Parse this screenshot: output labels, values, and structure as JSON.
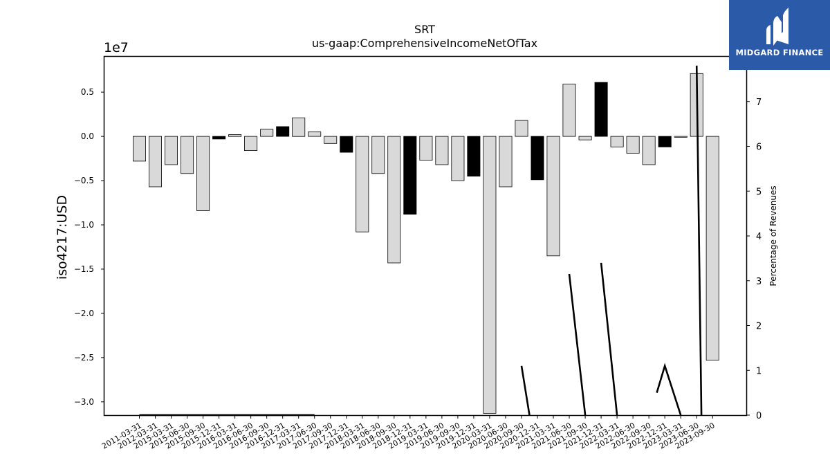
{
  "chart_data": {
    "type": "bar",
    "title": "SRT",
    "subtitle": "us-gaap:ComprehensiveIncomeNetOfTax",
    "ylabel": "iso4217:USD",
    "y_multiplier": "1e7",
    "y2label": "Percentage of Revenues",
    "ylim": [
      -3.15,
      0.9
    ],
    "y2lim": [
      0,
      8
    ],
    "yticks": [
      -3.0,
      -2.5,
      -2.0,
      -1.5,
      -1.0,
      -0.5,
      0.0,
      0.5
    ],
    "y2ticks": [
      0,
      1,
      2,
      3,
      4,
      5,
      6,
      7
    ],
    "categories": [
      "2011-03-31",
      "2012-03-31",
      "2015-03-31",
      "2015-06-30",
      "2015-09-30",
      "2015-12-31",
      "2016-03-31",
      "2016-06-30",
      "2016-09-30",
      "2016-12-31",
      "2017-03-31",
      "2017-06-30",
      "2017-09-30",
      "2017-12-31",
      "2018-03-31",
      "2018-06-30",
      "2018-09-30",
      "2018-12-31",
      "2019-03-31",
      "2019-06-30",
      "2019-09-30",
      "2019-12-31",
      "2020-03-31",
      "2020-06-30",
      "2020-09-30",
      "2020-12-31",
      "2021-03-31",
      "2021-06-30",
      "2021-09-30",
      "2021-12-31",
      "2022-03-31",
      "2022-06-30",
      "2022-09-30",
      "2022-12-31",
      "2023-03-31",
      "2023-06-30",
      "2023-09-30"
    ],
    "values": [
      -0.28,
      -0.57,
      -0.32,
      -0.42,
      -0.84,
      -0.03,
      0.02,
      -0.16,
      0.08,
      0.11,
      0.21,
      0.05,
      -0.08,
      -0.18,
      -1.08,
      -0.42,
      -1.43,
      -0.88,
      -0.27,
      -0.32,
      -0.5,
      -0.45,
      -3.13,
      -0.57,
      0.18,
      -0.49,
      -1.35,
      0.59,
      -0.04,
      0.61,
      -0.12,
      -0.19,
      -0.32,
      -0.12,
      -0.01,
      0.71,
      -2.53
    ],
    "bar_colors": [
      "light",
      "light",
      "light",
      "light",
      "light",
      "dark",
      "light",
      "light",
      "light",
      "dark",
      "light",
      "light",
      "light",
      "dark",
      "light",
      "light",
      "light",
      "dark",
      "light",
      "light",
      "light",
      "dark",
      "light",
      "light",
      "light",
      "dark",
      "light",
      "light",
      "light",
      "dark",
      "light",
      "light",
      "light",
      "dark",
      "light",
      "light",
      "light"
    ],
    "colors": {
      "light": "#d9d9d9",
      "dark": "#000000",
      "edge": "#000000",
      "line": "#000000"
    },
    "line_series": {
      "name": "Percentage of Revenues",
      "points": [
        [
          0,
          0
        ],
        [
          11,
          0
        ],
        [
          12.5,
          null
        ],
        [
          13,
          0
        ],
        [
          13.5,
          null
        ],
        [
          23.6,
          null
        ],
        [
          24,
          1.1
        ],
        [
          24.5,
          0
        ],
        [
          24.8,
          null
        ],
        [
          26.6,
          null
        ],
        [
          26.3,
          null
        ],
        [
          27,
          3.15
        ],
        [
          28,
          0
        ],
        [
          28.3,
          null
        ],
        [
          28.5,
          null
        ],
        [
          29,
          3.4
        ],
        [
          30,
          0
        ],
        [
          30.2,
          null
        ],
        [
          32.3,
          null
        ],
        [
          32.5,
          0.5
        ],
        [
          33,
          1.1
        ],
        [
          34,
          0
        ],
        [
          34.5,
          null
        ],
        [
          34.4,
          null
        ],
        [
          35,
          7.8
        ],
        [
          35.3,
          0
        ]
      ]
    }
  }
}
